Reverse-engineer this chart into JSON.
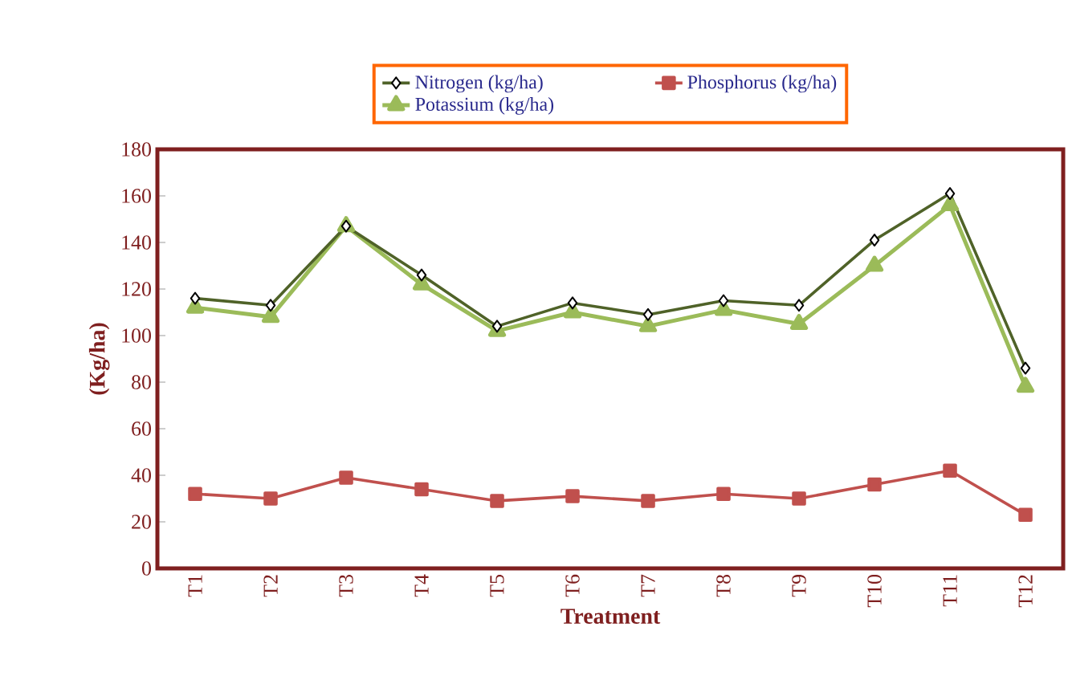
{
  "chart_data": {
    "type": "line",
    "xlabel": "Treatment",
    "ylabel": "(Kg/ha)",
    "categories": [
      "T1",
      "T2",
      "T3",
      "T4",
      "T5",
      "T6",
      "T7",
      "T8",
      "T9",
      "T10",
      "T11",
      "T12"
    ],
    "series": [
      {
        "name": "Nitrogen (kg/ha)",
        "color": "#4f6228",
        "marker": "diamond",
        "values": [
          116,
          113,
          147,
          126,
          104,
          114,
          109,
          115,
          113,
          141,
          161,
          86
        ]
      },
      {
        "name": "Phosphorus (kg/ha)",
        "color": "#c0504d",
        "marker": "square",
        "values": [
          32,
          30,
          39,
          34,
          29,
          31,
          29,
          32,
          30,
          36,
          42,
          23
        ]
      },
      {
        "name": "Potassium (kg/ha)",
        "color": "#9bbb59",
        "marker": "triangle",
        "values": [
          112,
          108,
          147,
          122,
          102,
          110,
          104,
          111,
          105,
          130,
          156,
          78
        ]
      }
    ],
    "ylim": [
      0,
      180
    ],
    "yticks": [
      0,
      20,
      40,
      60,
      80,
      100,
      120,
      140,
      160,
      180
    ],
    "grid": false,
    "legend": "top"
  }
}
